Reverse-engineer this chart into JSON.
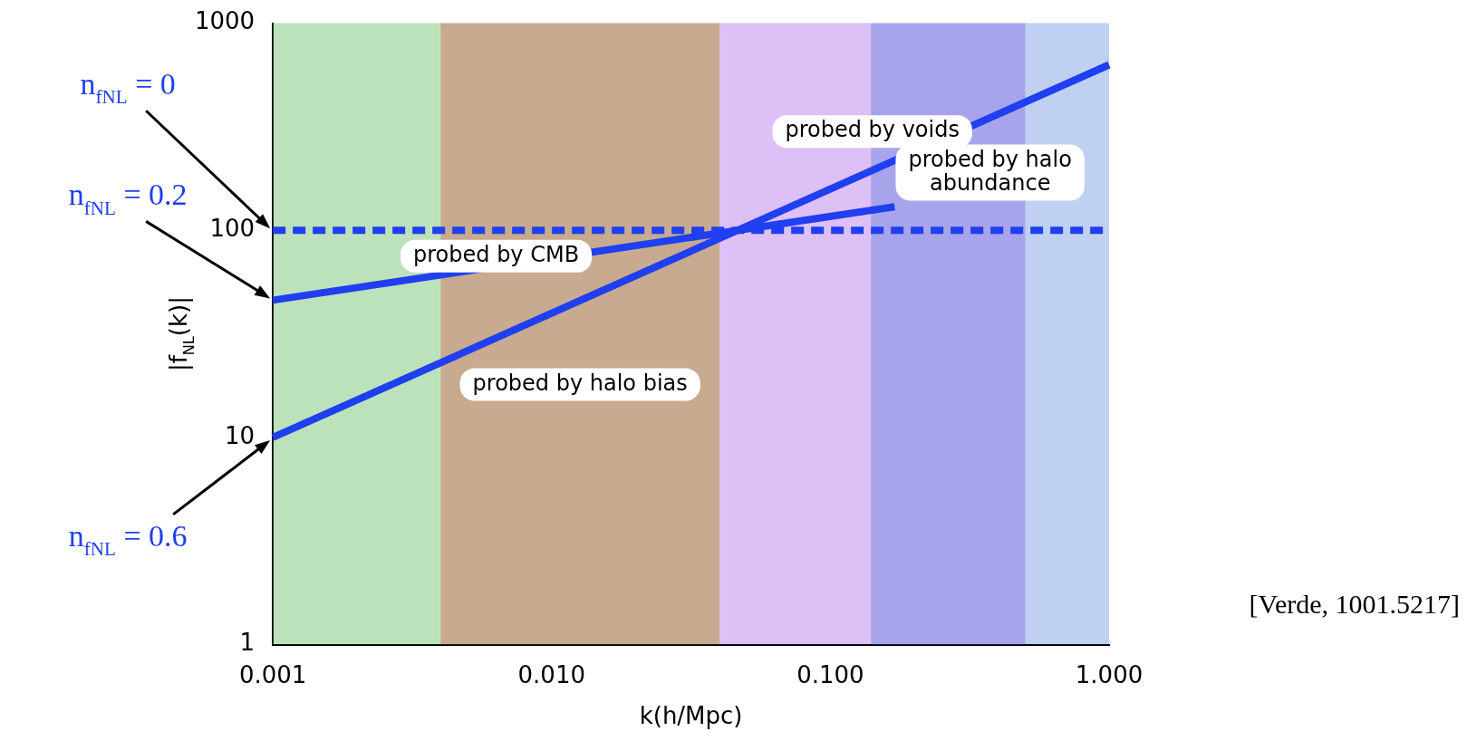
{
  "chart_data": {
    "type": "line",
    "xlabel": "k(h/Mpc)",
    "ylabel": "|f$_{NL}$(k)|",
    "log": "xy",
    "grid": false,
    "legend": false,
    "marker": "none",
    "xlim": [
      0.001,
      1
    ],
    "xticks": [
      {
        "value": 0.001,
        "label": "0.001"
      },
      {
        "value": 0.01,
        "label": "0.010"
      },
      {
        "value": 0.1,
        "label": "0.100"
      },
      {
        "value": 1,
        "label": "1.000"
      }
    ],
    "ylim": [
      1,
      1000
    ],
    "yticks": [
      1,
      10,
      100,
      1000
    ],
    "series": [
      {
        "color": "#1f3ff0",
        "x": [
          0.001,
          1
        ],
        "values": [
          100,
          100
        ],
        "line_style": "dashed"
      },
      {
        "color": "#1f3ff0",
        "x": [
          0.001,
          0.17
        ],
        "values": [
          46,
          130
        ],
        "line_style": "solid"
      },
      {
        "color": "#1f3ff0",
        "x": [
          0.001,
          1
        ],
        "values": [
          10,
          630
        ],
        "line_style": "solid"
      }
    ],
    "bands": [
      {
        "axis": "x",
        "from": 0.001,
        "to": 0.04,
        "label": "probed by CMB",
        "color": "#22a022"
      },
      {
        "axis": "x",
        "from": 0.004,
        "to": 0.04,
        "label": "probed by halo bias",
        "color": "#e02828"
      },
      {
        "axis": "x",
        "from": 0.04,
        "to": 0.5,
        "label": "probed by voids",
        "color": "#9030e0"
      },
      {
        "axis": "x",
        "from": 0.14,
        "to": 1,
        "label": "probed by halo abundance",
        "color": "#2a62d0"
      }
    ],
    "annotations": [
      "n$_{fNL}$ = 0",
      "n$_{fNL}$ = 0.2",
      "n$_{fNL}$ = 0.6",
      "[Verde, 1001.5217]"
    ]
  }
}
